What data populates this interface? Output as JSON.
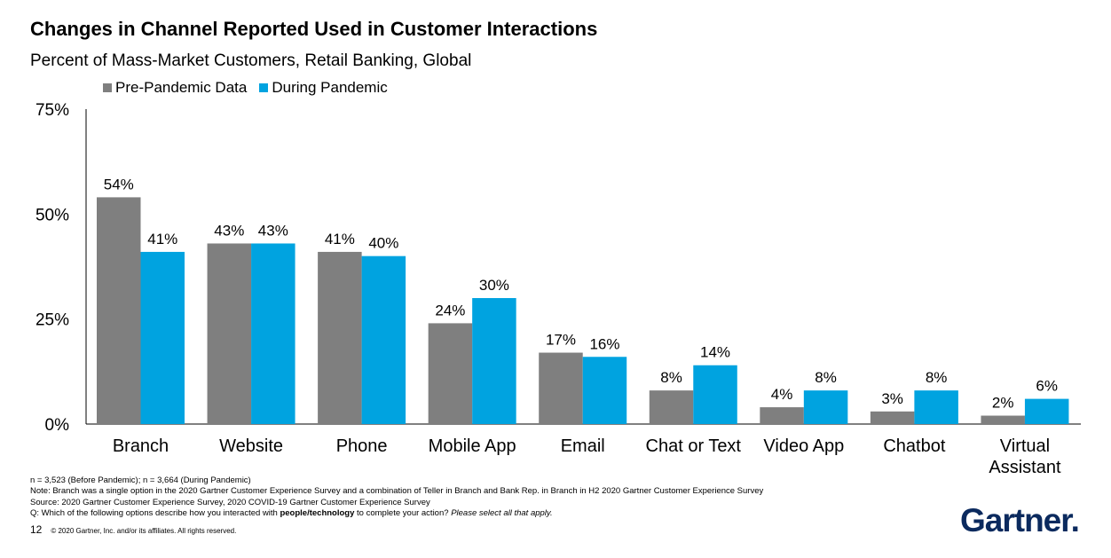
{
  "header": {
    "title": "Changes in Channel Reported Used in Customer Interactions",
    "subtitle": "Percent of Mass-Market Customers, Retail Banking, Global"
  },
  "legend": {
    "items": [
      {
        "label": "Pre-Pandemic Data",
        "color": "#7f7f7f"
      },
      {
        "label": "During Pandemic",
        "color": "#00a3e0"
      }
    ]
  },
  "chart_data": {
    "type": "bar",
    "title": "Changes in Channel Reported Used in Customer Interactions",
    "subtitle": "Percent of Mass-Market Customers, Retail Banking, Global",
    "categories": [
      "Branch",
      "Website",
      "Phone",
      "Mobile App",
      "Email",
      "Chat or Text",
      "Video App",
      "Chatbot",
      "Virtual Assistant"
    ],
    "series": [
      {
        "name": "Pre-Pandemic Data",
        "values": [
          54,
          43,
          41,
          24,
          17,
          8,
          4,
          3,
          2
        ],
        "color": "#7f7f7f"
      },
      {
        "name": "During Pandemic",
        "values": [
          41,
          43,
          40,
          30,
          16,
          14,
          8,
          8,
          6
        ],
        "color": "#00a3e0"
      }
    ],
    "ylim": [
      0,
      75
    ],
    "yticks": [
      0,
      25,
      50,
      75
    ],
    "ytick_labels": [
      "0%",
      "25%",
      "50%",
      "75%"
    ],
    "value_suffix": "%",
    "grid": false,
    "legend_position": "top-left"
  },
  "notes": {
    "line1": "n = 3,523 (Before Pandemic); n = 3,664 (During Pandemic)",
    "line2": "Note: Branch was a single option in the 2020 Gartner Customer Experience Survey and a combination of Teller in Branch and Bank Rep. in Branch in H2 2020 Gartner Customer Experience Survey",
    "line3": "Source: 2020 Gartner Customer Experience Survey, 2020 COVID-19 Gartner Customer Experience Survey",
    "line4_prefix": "Q: Which of the following options describe how you interacted with ",
    "line4_bold": "people/technology",
    "line4_middle": " to complete your action? ",
    "line4_italic": "Please select all that apply."
  },
  "footer": {
    "page_number": "12",
    "copyright": "© 2020 Gartner, Inc. and/or its affiliates. All rights reserved."
  },
  "logo": {
    "text": "Gartner",
    "mark": "."
  }
}
